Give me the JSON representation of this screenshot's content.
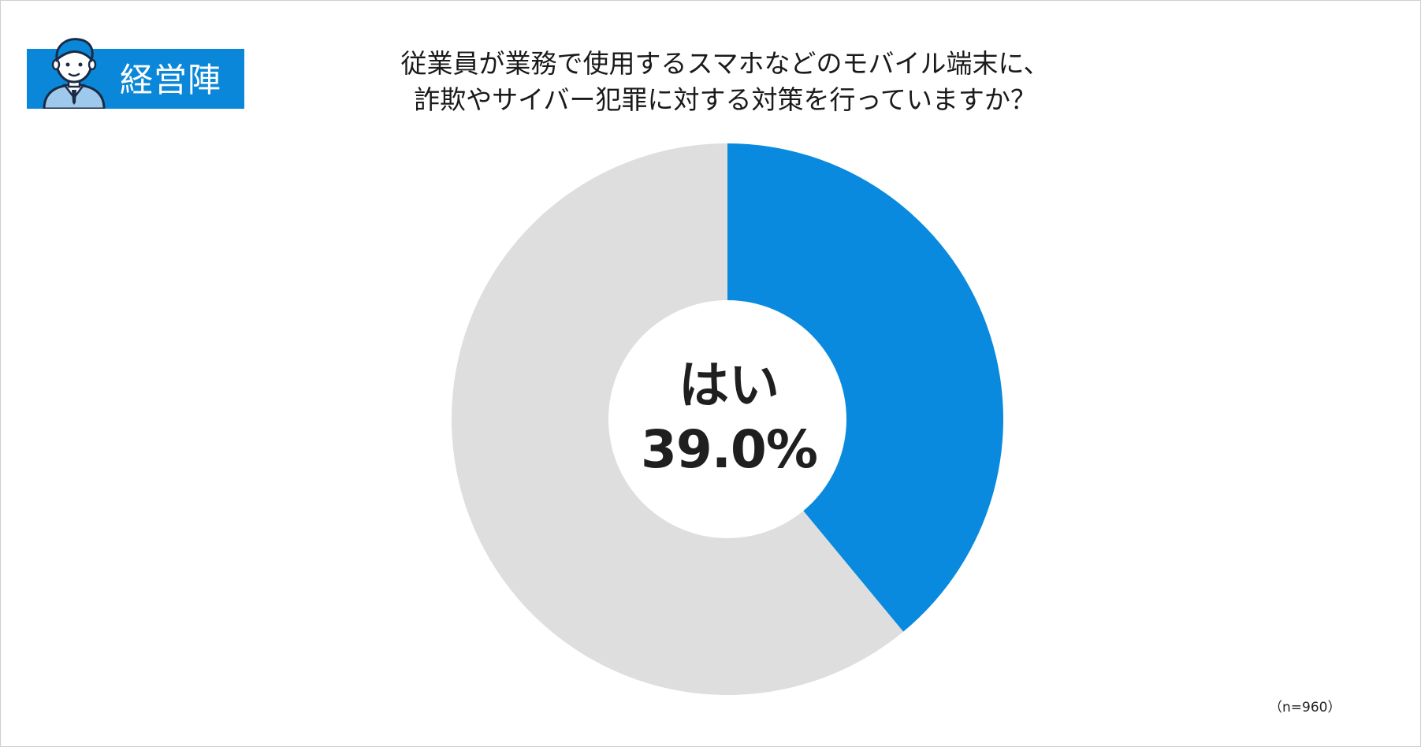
{
  "badge": {
    "label": "経営陣",
    "color": "#0a87d8"
  },
  "title": {
    "line1": "従業員が業務で使用するスマホなどのモバイル端末に、",
    "line2": "詐欺やサイバー犯罪に対する対策を行っていますか？"
  },
  "chart_data": {
    "type": "pie",
    "style": "donut",
    "title": "従業員が業務で使用するスマホなどのモバイル端末に、詐欺やサイバー犯罪に対する対策を行っていますか？",
    "slices": [
      {
        "label": "はい",
        "value": 39.0,
        "color": "#0a8ade"
      },
      {
        "label": "",
        "value": 61.0,
        "color": "#dedede"
      }
    ],
    "center_label": {
      "category": "はい",
      "value": "39.0%"
    },
    "legend": "none"
  },
  "note": "（n=960）"
}
